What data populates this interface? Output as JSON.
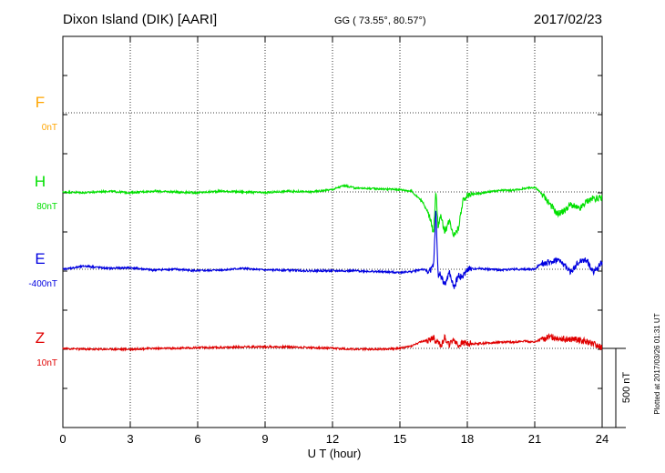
{
  "header": {
    "title": "Dixon Island (DIK)  [AARI]",
    "coords": "GG ( 73.55°,  80.57°)",
    "date": "2017/02/23"
  },
  "plotted_note": "Plotted at 2017/03/26 01:31  UT",
  "scale_label": "500 nT",
  "colors": {
    "F": "#ffa500",
    "H": "#00e000",
    "E": "#0000e0",
    "Z": "#e00000"
  },
  "chart_data": {
    "type": "line",
    "xlabel": "U T (hour)",
    "ylabel": "",
    "xlim": [
      0,
      24
    ],
    "x_ticks": [
      "0",
      "3",
      "6",
      "9",
      "12",
      "15",
      "18",
      "21",
      "24"
    ],
    "scale_bar_nT": 500,
    "grid": true,
    "series": [
      {
        "name": "F",
        "baseline": "0nT",
        "color": "#ffa500",
        "x": [],
        "y": []
      },
      {
        "name": "H",
        "baseline": "80nT",
        "color": "#00e000",
        "x": [
          0,
          1,
          2,
          3,
          4,
          5,
          6,
          7,
          8,
          9,
          10,
          11,
          12,
          12.5,
          13,
          14,
          15,
          15.5,
          16,
          16.3,
          16.5,
          16.6,
          16.7,
          16.8,
          17,
          17.2,
          17.4,
          17.6,
          17.8,
          18,
          18.5,
          19,
          19.5,
          20,
          20.5,
          21,
          21.3,
          21.6,
          22,
          22.3,
          22.6,
          23,
          23.3,
          23.6,
          24
        ],
        "y": [
          0,
          -5,
          5,
          -5,
          5,
          0,
          -5,
          5,
          0,
          -5,
          5,
          0,
          15,
          40,
          25,
          20,
          15,
          5,
          -60,
          -150,
          -260,
          20,
          -220,
          -150,
          -250,
          -180,
          -270,
          -230,
          -60,
          -20,
          -10,
          0,
          10,
          10,
          20,
          30,
          -10,
          -60,
          -140,
          -120,
          -80,
          -110,
          -60,
          -40,
          -40
        ]
      },
      {
        "name": "E",
        "baseline": "-400nT",
        "color": "#0000e0",
        "x": [
          0,
          1,
          2,
          3,
          4,
          5,
          6,
          7,
          8,
          9,
          10,
          11,
          12,
          13,
          14,
          15,
          15.5,
          16,
          16.3,
          16.5,
          16.6,
          16.7,
          16.8,
          17,
          17.2,
          17.4,
          17.6,
          17.8,
          18,
          18.5,
          19,
          19.5,
          20,
          20.5,
          21,
          21.3,
          21.6,
          22,
          22.3,
          22.6,
          23,
          23.3,
          23.6,
          24
        ],
        "y": [
          0,
          20,
          5,
          10,
          -5,
          0,
          -10,
          -5,
          5,
          -5,
          -5,
          -10,
          -10,
          -10,
          -15,
          -20,
          -15,
          0,
          -15,
          20,
          380,
          -40,
          -30,
          -100,
          -20,
          -120,
          -40,
          -50,
          0,
          5,
          0,
          -5,
          0,
          0,
          0,
          40,
          40,
          60,
          30,
          -20,
          50,
          60,
          -20,
          40
        ]
      },
      {
        "name": "Z",
        "baseline": "10nT",
        "color": "#e00000",
        "x": [
          0,
          1,
          2,
          3,
          4,
          5,
          6,
          7,
          8,
          9,
          10,
          11,
          12,
          13,
          14,
          15,
          15.5,
          16,
          16.3,
          16.5,
          16.6,
          16.7,
          16.8,
          17,
          17.2,
          17.4,
          17.6,
          17.8,
          18,
          18.5,
          19,
          19.5,
          20,
          20.5,
          21,
          21.3,
          21.6,
          22,
          22.3,
          22.6,
          23,
          23.3,
          23.6,
          24
        ],
        "y": [
          0,
          -5,
          -5,
          -5,
          0,
          0,
          5,
          5,
          10,
          10,
          10,
          5,
          0,
          -5,
          -5,
          0,
          15,
          45,
          50,
          70,
          40,
          55,
          10,
          70,
          20,
          60,
          15,
          35,
          30,
          30,
          35,
          40,
          40,
          45,
          40,
          60,
          70,
          70,
          60,
          55,
          55,
          40,
          30,
          0
        ]
      }
    ]
  }
}
